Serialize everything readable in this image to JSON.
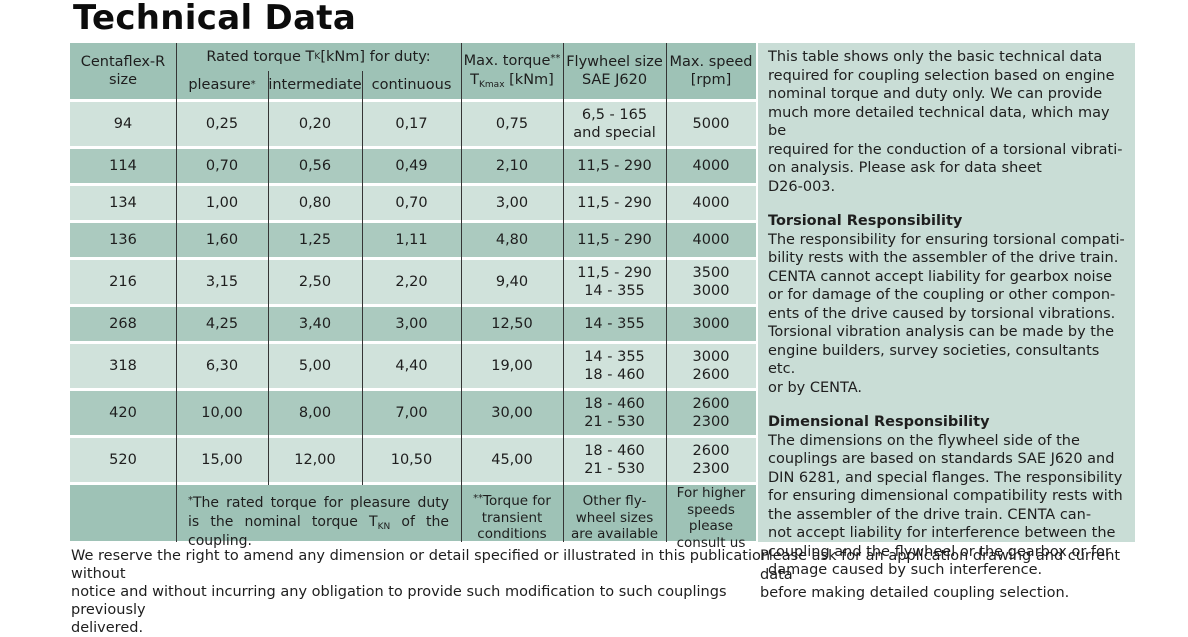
{
  "page": {
    "title": "Technical Data",
    "footnote_left": "We reserve the right to amend any dimension or detail specified or illustrated in this publication without\nnotice and without incurring any obligation to provide such modification to such couplings previously\ndelivered.",
    "footnote_right": "Please ask for an application drawing and current data\nbefore making detailed coupling selection."
  },
  "colors": {
    "band_header": "#9ec2b6",
    "row_light": "#d0e2db",
    "row_dark": "#abcabf",
    "panel_bg": "#c9ddd6",
    "separator_line": "#353535"
  },
  "table": {
    "header": {
      "size_col": "Centaflex-R\nsize",
      "rated_torque_group": {
        "pre": "Rated torque T",
        "sub": "K",
        "post": " [kNm] for duty:"
      },
      "duty": {
        "pleasure": "pleasure",
        "pleasure_sup": "*",
        "intermediate": "intermediate",
        "continuous": "continuous"
      },
      "max_torque": {
        "line1": "Max. torque",
        "sup": "**",
        "t": "T",
        "t_sub": "Kmax",
        "t_post": " [kNm]"
      },
      "flywheel": "Flywheel size\nSAE J620",
      "max_speed": "Max. speed\n[rpm]"
    },
    "rows": [
      {
        "size": "94",
        "pleasure": "0,25",
        "intermediate": "0,20",
        "continuous": "0,17",
        "max_torque": "0,75",
        "flywheel": "6,5 - 165\nand special",
        "max_speed": "5000"
      },
      {
        "size": "114",
        "pleasure": "0,70",
        "intermediate": "0,56",
        "continuous": "0,49",
        "max_torque": "2,10",
        "flywheel": "11,5 - 290",
        "max_speed": "4000"
      },
      {
        "size": "134",
        "pleasure": "1,00",
        "intermediate": "0,80",
        "continuous": "0,70",
        "max_torque": "3,00",
        "flywheel": "11,5 - 290",
        "max_speed": "4000"
      },
      {
        "size": "136",
        "pleasure": "1,60",
        "intermediate": "1,25",
        "continuous": "1,11",
        "max_torque": "4,80",
        "flywheel": "11,5 - 290",
        "max_speed": "4000"
      },
      {
        "size": "216",
        "pleasure": "3,15",
        "intermediate": "2,50",
        "continuous": "2,20",
        "max_torque": "9,40",
        "flywheel": "11,5 - 290\n14 - 355",
        "max_speed": "3500\n3000"
      },
      {
        "size": "268",
        "pleasure": "4,25",
        "intermediate": "3,40",
        "continuous": "3,00",
        "max_torque": "12,50",
        "flywheel": "14 - 355",
        "max_speed": "3000"
      },
      {
        "size": "318",
        "pleasure": "6,30",
        "intermediate": "5,00",
        "continuous": "4,40",
        "max_torque": "19,00",
        "flywheel": "14 - 355\n18 - 460",
        "max_speed": "3000\n2600"
      },
      {
        "size": "420",
        "pleasure": "10,00",
        "intermediate": "8,00",
        "continuous": "7,00",
        "max_torque": "30,00",
        "flywheel": "18 - 460\n21 - 530",
        "max_speed": "2600\n2300"
      },
      {
        "size": "520",
        "pleasure": "15,00",
        "intermediate": "12,00",
        "continuous": "10,50",
        "max_torque": "45,00",
        "flywheel": "18 - 460\n21 - 530",
        "max_speed": "2600\n2300"
      }
    ],
    "footer": {
      "note_sup": "*",
      "note_pre": "The rated torque for pleasure duty is the nominal torque T",
      "note_sub": "KN",
      "note_post": " of the coupling.",
      "torque_sup": "**",
      "torque_text": "Torque for\ntransient\nconditions",
      "flywheel_note": "Other fly-\nwheel sizes\nare available",
      "speed_note": "For higher\nspeeds please\nconsult us"
    }
  },
  "panel": {
    "intro": "This table shows only the basic technical data\nrequired for coupling selection based on engine\nnominal torque and duty only. We can provide\nmuch more detailed technical data, which may be\nrequired for the conduction of a torsional vibrati-\non analysis. Please ask for data sheet\nD26-003.",
    "sections": [
      {
        "heading": "Torsional Responsibility",
        "body": "The responsibility for ensuring torsional compati-\nbility rests with the assembler of the drive train.\nCENTA cannot accept liability for gearbox noise\nor for damage of the coupling or other compon-\nents of the drive caused by torsional vibrations.\nTorsional vibration analysis can be made by the\nengine builders, survey societies, consultants etc.\nor by CENTA."
      },
      {
        "heading": "Dimensional Responsibility",
        "body": "The dimensions on the flywheel side of the\ncouplings are based on standards SAE J620 and\nDIN 6281, and special flanges. The responsibility\nfor ensuring dimensional compatibility rests with\nthe assembler of the drive train. CENTA can-\nnot accept liability for interference between the\ncoupling and the flywheel or the gearbox or for\ndamage caused by such interference."
      }
    ]
  }
}
